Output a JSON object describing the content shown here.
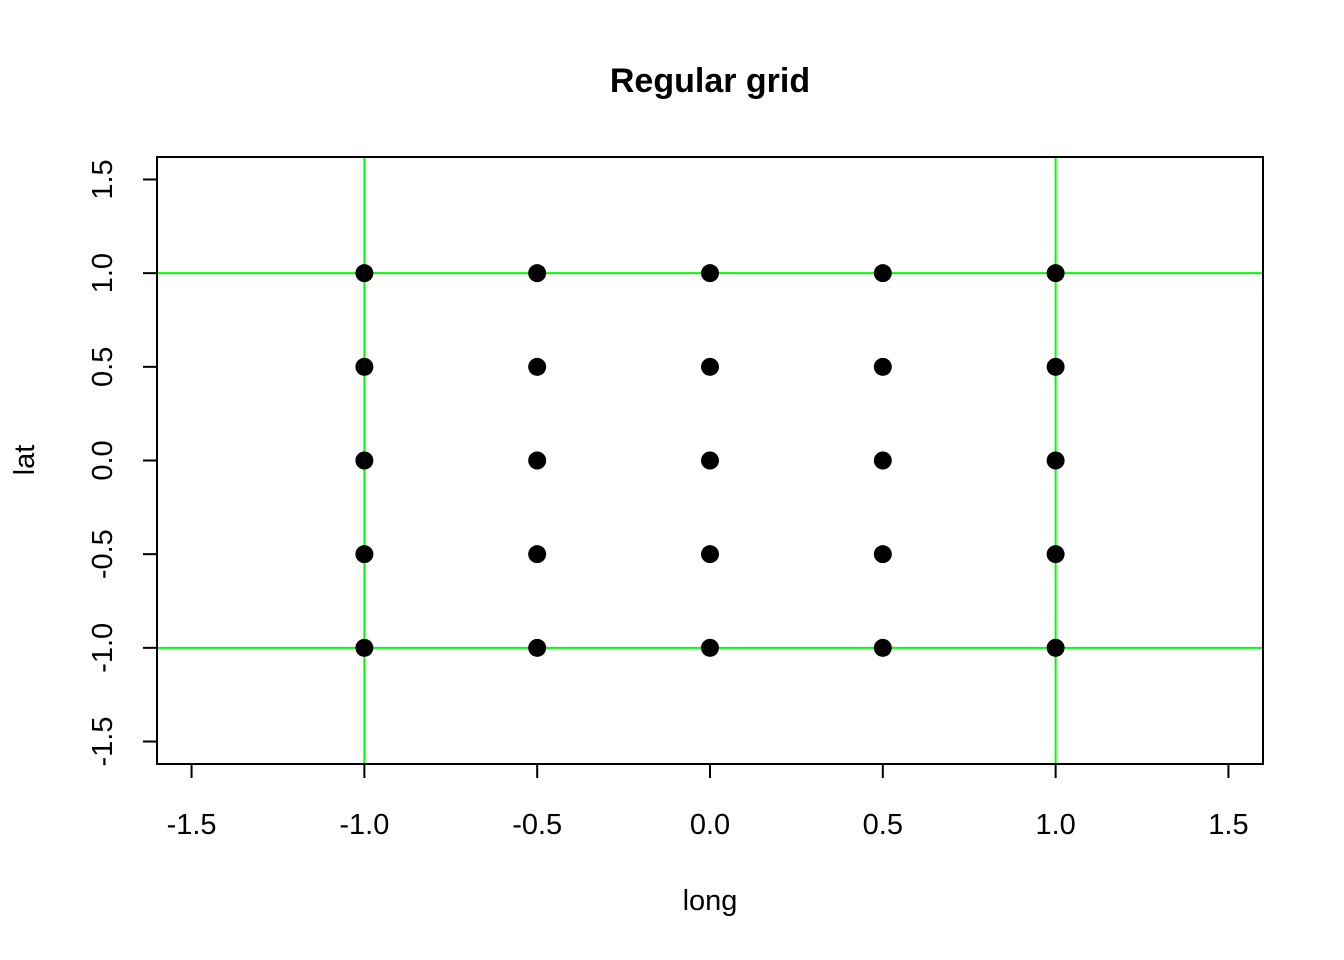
{
  "chart_data": {
    "type": "scatter",
    "title": "Regular grid",
    "xlabel": "long",
    "ylabel": "lat",
    "xlim": [
      -1.6,
      1.6
    ],
    "ylim": [
      -1.62,
      1.62
    ],
    "xticks": [
      -1.5,
      -1.0,
      -0.5,
      0.0,
      0.5,
      1.0,
      1.5
    ],
    "yticks": [
      -1.5,
      -1.0,
      -0.5,
      0.0,
      0.5,
      1.0,
      1.5
    ],
    "xtick_labels": [
      "-1.5",
      "-1.0",
      "-0.5",
      "0.0",
      "0.5",
      "1.0",
      "1.5"
    ],
    "ytick_labels": [
      "-1.5",
      "-1.0",
      "-0.5",
      "0.0",
      "0.5",
      "1.0",
      "1.5"
    ],
    "points": {
      "x": [
        -1,
        -0.5,
        0,
        0.5,
        1,
        -1,
        -0.5,
        0,
        0.5,
        1,
        -1,
        -0.5,
        0,
        0.5,
        1,
        -1,
        -0.5,
        0,
        0.5,
        1,
        -1,
        -0.5,
        0,
        0.5,
        1
      ],
      "y": [
        1,
        1,
        1,
        1,
        1,
        0.5,
        0.5,
        0.5,
        0.5,
        0.5,
        0,
        0,
        0,
        0,
        0,
        -0.5,
        -0.5,
        -0.5,
        -0.5,
        -0.5,
        -1,
        -1,
        -1,
        -1,
        -1
      ],
      "color": "#000000"
    },
    "reference_lines": {
      "vertical": [
        -1,
        1
      ],
      "horizontal": [
        -1,
        1
      ],
      "color": "#00ff00"
    },
    "grid": false,
    "legend": "none"
  }
}
